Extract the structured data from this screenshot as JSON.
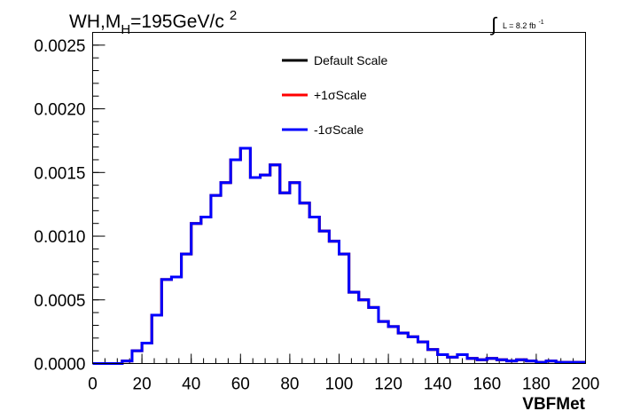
{
  "chart_data": {
    "type": "line",
    "title": {
      "prefix": "WH,M",
      "subscript": "H",
      "value": "=195GeV/c",
      "superscript": "2"
    },
    "lumi": {
      "integral": "∫",
      "text": "L = 8.2 fb",
      "superscript": "-1"
    },
    "xlabel": "VBFMet",
    "ylabel": "",
    "xlim": [
      0,
      200
    ],
    "ylim": [
      0,
      0.0026
    ],
    "x_ticks": [
      "0",
      "20",
      "40",
      "60",
      "80",
      "100",
      "120",
      "140",
      "160",
      "180",
      "200"
    ],
    "y_ticks": [
      "0.0000",
      "0.0005",
      "0.0010",
      "0.0015",
      "0.0020",
      "0.0025"
    ],
    "bin_width": 4,
    "legend_position": "top-center",
    "series": [
      {
        "name": "Default Scale",
        "color": "#000000",
        "values": [
          0.0,
          0.0,
          0.0,
          2e-05,
          0.0001,
          0.00016,
          0.00038,
          0.00066,
          0.00068,
          0.00086,
          0.0011,
          0.00115,
          0.00132,
          0.00142,
          0.0016,
          0.00169,
          0.00146,
          0.00148,
          0.00156,
          0.00134,
          0.00142,
          0.00126,
          0.00115,
          0.00104,
          0.00096,
          0.00086,
          0.00056,
          0.0005,
          0.00044,
          0.00033,
          0.00029,
          0.00024,
          0.00021,
          0.00017,
          0.00011,
          7e-05,
          5e-05,
          7e-05,
          4e-05,
          3e-05,
          4e-05,
          3e-05,
          2e-05,
          3e-05,
          2e-05,
          1e-05,
          2e-05,
          1e-05,
          1e-05,
          1e-05
        ]
      },
      {
        "name": "+1σScale",
        "color": "#ff0000",
        "values": [
          0.0,
          0.0,
          0.0,
          2e-05,
          0.0001,
          0.00016,
          0.00038,
          0.00066,
          0.00068,
          0.00086,
          0.0011,
          0.00115,
          0.00132,
          0.00142,
          0.0016,
          0.00169,
          0.00146,
          0.00148,
          0.00156,
          0.00134,
          0.00142,
          0.00126,
          0.00115,
          0.00104,
          0.00096,
          0.00086,
          0.00056,
          0.0005,
          0.00044,
          0.00033,
          0.00029,
          0.00024,
          0.00021,
          0.00017,
          0.00011,
          7e-05,
          5e-05,
          7e-05,
          4e-05,
          3e-05,
          4e-05,
          3e-05,
          2e-05,
          3e-05,
          2e-05,
          1e-05,
          2e-05,
          1e-05,
          1e-05,
          1e-05
        ]
      },
      {
        "name": "-1σScale",
        "color": "#0000ff",
        "values": [
          0.0,
          0.0,
          0.0,
          2e-05,
          0.0001,
          0.00016,
          0.00038,
          0.00066,
          0.00068,
          0.00086,
          0.0011,
          0.00115,
          0.00132,
          0.00142,
          0.0016,
          0.00169,
          0.00146,
          0.00148,
          0.00156,
          0.00134,
          0.00142,
          0.00126,
          0.00115,
          0.00104,
          0.00096,
          0.00086,
          0.00056,
          0.0005,
          0.00044,
          0.00033,
          0.00029,
          0.00024,
          0.00021,
          0.00017,
          0.00011,
          7e-05,
          5e-05,
          7e-05,
          4e-05,
          3e-05,
          4e-05,
          3e-05,
          2e-05,
          3e-05,
          2e-05,
          1e-05,
          2e-05,
          1e-05,
          1e-05,
          1e-05
        ]
      }
    ]
  }
}
